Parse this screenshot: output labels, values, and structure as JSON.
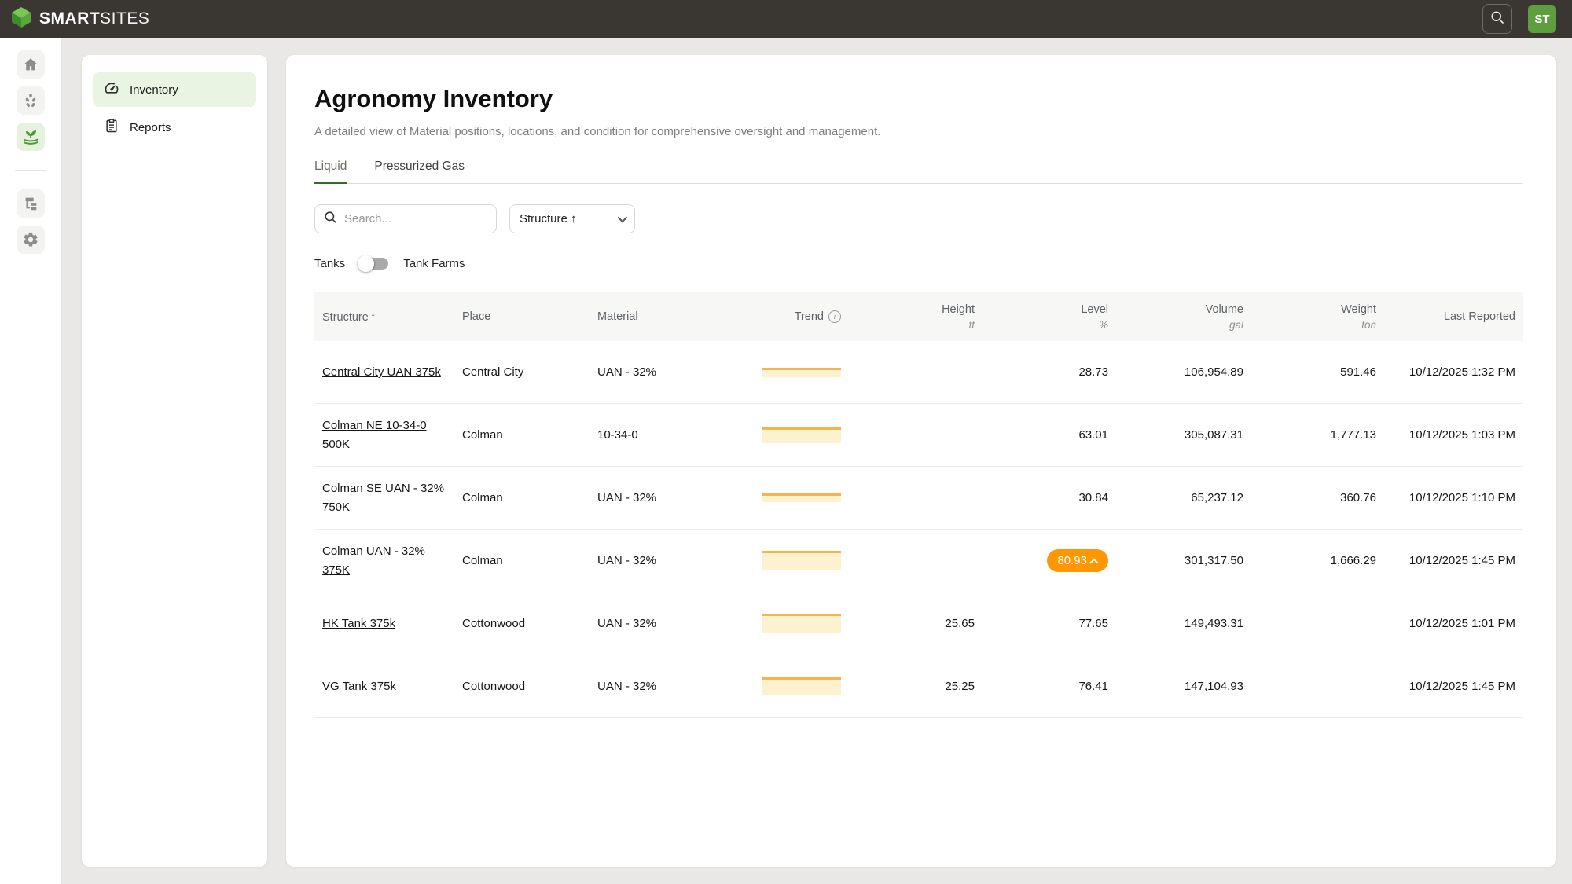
{
  "topbar": {
    "brand_bold": "SMART",
    "brand_light": "SITES",
    "avatar_initials": "ST"
  },
  "rail": {
    "items": [
      {
        "icon": "home-icon",
        "active": false
      },
      {
        "icon": "grain-icon",
        "active": false
      },
      {
        "icon": "agronomy-plant-icon",
        "active": true
      },
      {
        "icon": "hierarchy-icon",
        "active": false
      },
      {
        "icon": "gear-icon",
        "active": false
      }
    ]
  },
  "sidebar": {
    "items": [
      {
        "label": "Inventory",
        "icon": "gauge-icon",
        "active": true
      },
      {
        "label": "Reports",
        "icon": "clipboard-icon",
        "active": false
      }
    ]
  },
  "page": {
    "title": "Agronomy Inventory",
    "subtitle": "A detailed view of Material positions, locations, and condition for comprehensive oversight and management.",
    "tabs": [
      {
        "label": "Liquid",
        "active": true
      },
      {
        "label": "Pressurized Gas",
        "active": false
      }
    ],
    "search_placeholder": "Search...",
    "sort_select_value": "Structure ↑",
    "toggle_left_label": "Tanks",
    "toggle_right_label": "Tank Farms"
  },
  "table": {
    "columns": [
      {
        "label": "Structure",
        "sort_arrow": "↑"
      },
      {
        "label": "Place"
      },
      {
        "label": "Material"
      },
      {
        "label": "Trend",
        "has_info_icon": true
      },
      {
        "label": "Height",
        "unit": "ft"
      },
      {
        "label": "Level",
        "unit": "%"
      },
      {
        "label": "Volume",
        "unit": "gal"
      },
      {
        "label": "Weight",
        "unit": "ton"
      },
      {
        "label": "Last Reported"
      }
    ],
    "rows": [
      {
        "structure": "Central City UAN 375k",
        "place": "Central City",
        "material": "UAN - 32%",
        "trend_height": 12,
        "height": "",
        "level": "28.73",
        "level_alert": false,
        "volume": "106,954.89",
        "weight": "591.46",
        "last_reported": "10/12/2025 1:32 PM"
      },
      {
        "structure": "Colman NE 10-34-0 500K",
        "place": "Colman",
        "material": "10-34-0",
        "trend_height": 20,
        "height": "",
        "level": "63.01",
        "level_alert": false,
        "volume": "305,087.31",
        "weight": "1,777.13",
        "last_reported": "10/12/2025 1:03 PM"
      },
      {
        "structure": "Colman SE UAN - 32% 750K",
        "place": "Colman",
        "material": "UAN - 32%",
        "trend_height": 11,
        "height": "",
        "level": "30.84",
        "level_alert": false,
        "volume": "65,237.12",
        "weight": "360.76",
        "last_reported": "10/12/2025 1:10 PM"
      },
      {
        "structure": "Colman UAN - 32% 375K",
        "place": "Colman",
        "material": "UAN - 32%",
        "trend_height": 25,
        "height": "",
        "level": "80.93",
        "level_alert": true,
        "volume": "301,317.50",
        "weight": "1,666.29",
        "last_reported": "10/12/2025 1:45 PM"
      },
      {
        "structure": "HK Tank 375k",
        "place": "Cottonwood",
        "material": "UAN - 32%",
        "trend_height": 25,
        "height": "25.65",
        "level": "77.65",
        "level_alert": false,
        "volume": "149,493.31",
        "weight": "",
        "last_reported": "10/12/2025 1:01 PM"
      },
      {
        "structure": "VG Tank 375k",
        "place": "Cottonwood",
        "material": "UAN - 32%",
        "trend_height": 23,
        "height": "25.25",
        "level": "76.41",
        "level_alert": false,
        "volume": "147,104.93",
        "weight": "",
        "last_reported": "10/12/2025 1:45 PM"
      }
    ]
  },
  "colors": {
    "topbar_bg": "#3a3733",
    "brand_green": "#5f9e3e",
    "active_tab_underline": "#356a29",
    "active_nav_bg": "#eaf4e2",
    "badge_orange": "#ff9800",
    "spark_line": "#f7b44c",
    "spark_fill": "#fdf2cf",
    "header_bg": "#f7f7f5"
  }
}
